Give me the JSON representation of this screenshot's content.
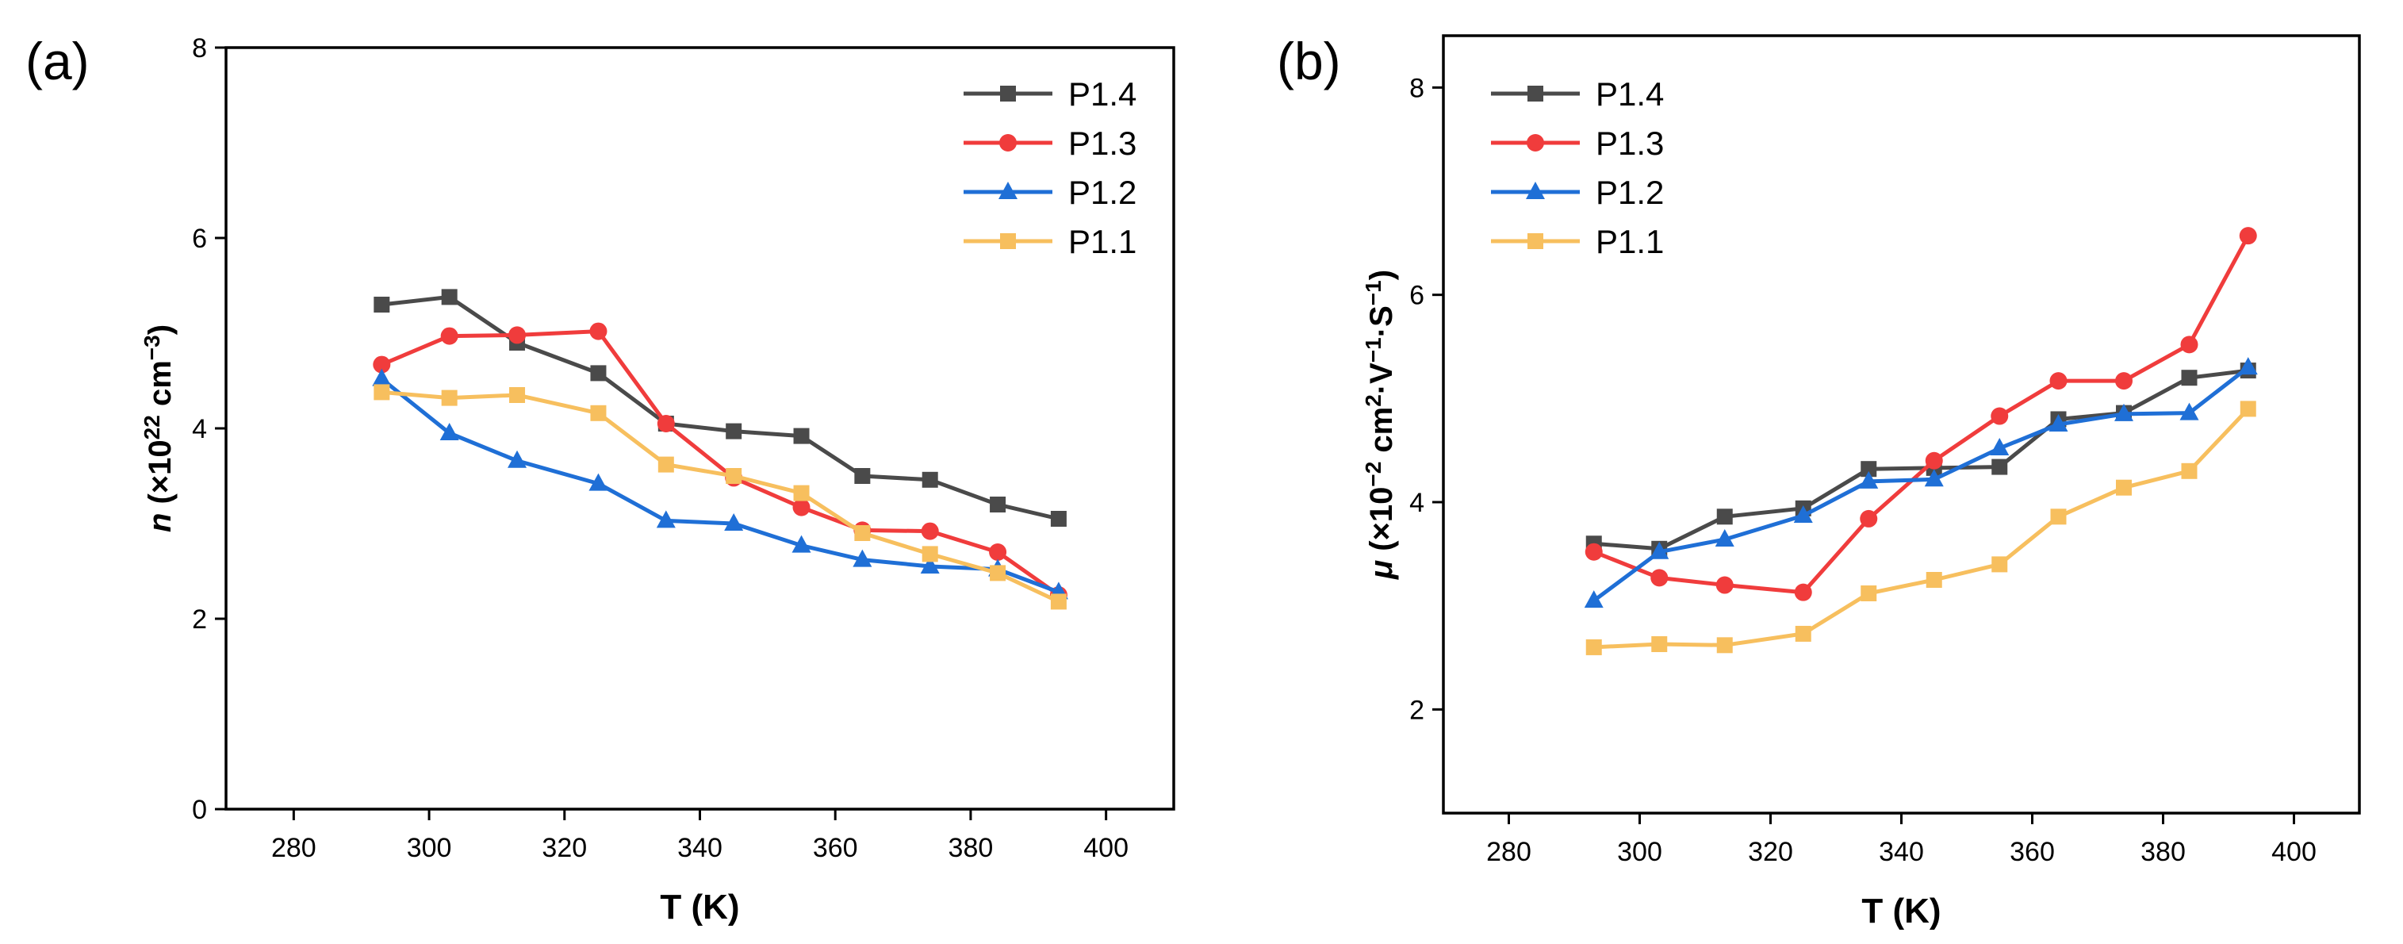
{
  "chart_data": [
    {
      "type": "line",
      "panel_label": "(a)",
      "xlabel": "T (K)",
      "ylabel": {
        "var": "n",
        "rest": " (×10",
        "exp": "22",
        "unit": " cm",
        "unit_exp": "−3",
        "close": ")"
      },
      "xlim": [
        270,
        410
      ],
      "ylim": [
        0,
        8
      ],
      "xticks": [
        280,
        300,
        320,
        340,
        360,
        380,
        400
      ],
      "yticks": [
        0,
        2,
        4,
        6,
        8
      ],
      "legend_position": "top-right",
      "x": [
        293,
        303,
        313,
        325,
        335,
        345,
        355,
        364,
        374,
        384,
        393
      ],
      "series": [
        {
          "name": "P1.4",
          "color": "#4a4a4a",
          "marker": "square",
          "values": [
            5.3,
            5.38,
            4.9,
            4.58,
            4.05,
            3.97,
            3.92,
            3.5,
            3.46,
            3.2,
            3.05
          ]
        },
        {
          "name": "P1.3",
          "color": "#f03c3c",
          "marker": "circle",
          "values": [
            4.67,
            4.97,
            4.98,
            5.02,
            4.05,
            3.48,
            3.17,
            2.93,
            2.92,
            2.7,
            2.25
          ]
        },
        {
          "name": "P1.2",
          "color": "#1f6fd6",
          "marker": "triangle",
          "values": [
            4.52,
            3.95,
            3.66,
            3.42,
            3.03,
            3.0,
            2.77,
            2.62,
            2.55,
            2.52,
            2.28
          ]
        },
        {
          "name": "P1.1",
          "color": "#f7bf5e",
          "marker": "square",
          "values": [
            4.38,
            4.32,
            4.35,
            4.16,
            3.62,
            3.5,
            3.32,
            2.9,
            2.68,
            2.48,
            2.18
          ]
        }
      ]
    },
    {
      "type": "line",
      "panel_label": "(b)",
      "xlabel": "T (K)",
      "ylabel": {
        "var": "μ",
        "rest": " (×10",
        "exp": "−2",
        "unit": " cm",
        "unit_exp": "2",
        "tail": "·V",
        "tail_exp": "−1",
        "tail2": "·S",
        "tail2_exp": "−1",
        "close": ")"
      },
      "xlim": [
        270,
        410
      ],
      "ylim": [
        1,
        8.5
      ],
      "xticks": [
        280,
        300,
        320,
        340,
        360,
        380,
        400
      ],
      "yticks": [
        2,
        4,
        6,
        8
      ],
      "legend_position": "top-left",
      "x": [
        293,
        303,
        313,
        325,
        335,
        345,
        355,
        364,
        374,
        384,
        393
      ],
      "series": [
        {
          "name": "P1.4",
          "color": "#4a4a4a",
          "marker": "square",
          "values": [
            3.6,
            3.55,
            3.86,
            3.94,
            4.32,
            4.33,
            4.34,
            4.8,
            4.86,
            5.2,
            5.27
          ]
        },
        {
          "name": "P1.3",
          "color": "#f03c3c",
          "marker": "circle",
          "values": [
            3.52,
            3.27,
            3.2,
            3.13,
            3.84,
            4.4,
            4.83,
            5.17,
            5.17,
            5.52,
            6.57
          ]
        },
        {
          "name": "P1.2",
          "color": "#1f6fd6",
          "marker": "triangle",
          "values": [
            3.05,
            3.52,
            3.64,
            3.87,
            4.2,
            4.22,
            4.52,
            4.75,
            4.85,
            4.86,
            5.3
          ]
        },
        {
          "name": "P1.1",
          "color": "#f7bf5e",
          "marker": "square",
          "values": [
            2.6,
            2.63,
            2.62,
            2.73,
            3.12,
            3.25,
            3.4,
            3.86,
            4.14,
            4.3,
            4.9
          ]
        }
      ]
    }
  ]
}
